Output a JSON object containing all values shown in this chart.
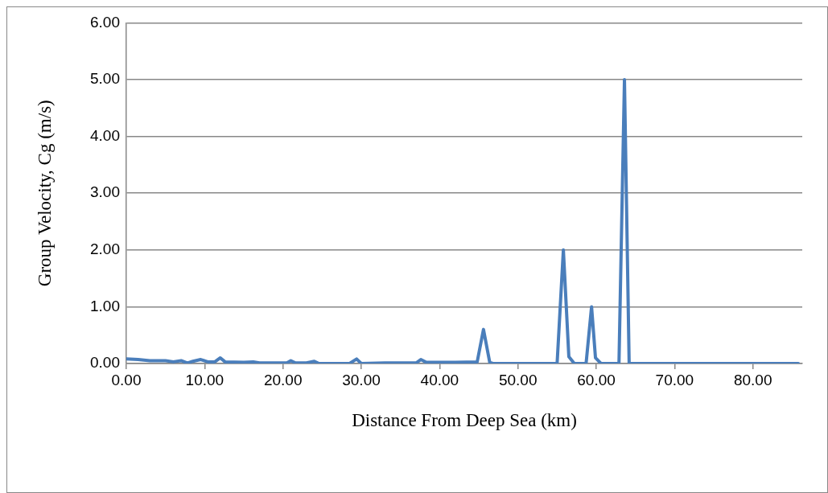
{
  "chart_data": {
    "type": "line",
    "xlabel": "Distance From Deep Sea (km)",
    "ylabel": "Group Velocity, Cg (m/s)",
    "xlim": [
      0,
      86.3
    ],
    "xticks": [
      {
        "value": 0,
        "label": "0.00"
      },
      {
        "value": 10,
        "label": "10.00"
      },
      {
        "value": 20,
        "label": "20.00"
      },
      {
        "value": 30,
        "label": "30.00"
      },
      {
        "value": 40,
        "label": "40.00"
      },
      {
        "value": 50,
        "label": "50.00"
      },
      {
        "value": 60,
        "label": "60.00"
      },
      {
        "value": 70,
        "label": "70.00"
      },
      {
        "value": 80,
        "label": "80.00"
      }
    ],
    "ylim": [
      0,
      6
    ],
    "yticks": [
      {
        "value": 0,
        "label": "0.00"
      },
      {
        "value": 1,
        "label": "1.00"
      },
      {
        "value": 2,
        "label": "2.00"
      },
      {
        "value": 3,
        "label": "3.00"
      },
      {
        "value": 4,
        "label": "4.00"
      },
      {
        "value": 5,
        "label": "5.00"
      },
      {
        "value": 6,
        "label": "6.00"
      }
    ],
    "grid": "y",
    "marker": "none",
    "line_style": "solid",
    "legend": false,
    "series": [
      {
        "color": "#4a7ebb",
        "x": [
          0,
          1.5,
          3,
          5,
          6,
          7,
          7.8,
          8.5,
          9.5,
          10.4,
          11.3,
          12,
          12.6,
          15,
          16.2,
          17,
          20.5,
          21,
          21.6,
          23,
          24,
          24.6,
          28.5,
          29.4,
          30,
          33,
          37,
          37.6,
          38.3,
          42,
          44.8,
          45.6,
          46.4,
          46.8,
          55,
          55.8,
          56.5,
          57.2,
          58.7,
          59.4,
          59.9,
          60.6,
          62.9,
          63.6,
          64.2,
          85.8
        ],
        "values": [
          0.08,
          0.07,
          0.05,
          0.05,
          0.03,
          0.05,
          0.01,
          0.04,
          0.07,
          0.03,
          0.03,
          0.1,
          0.03,
          0.02,
          0.03,
          0.01,
          0.01,
          0.05,
          0.01,
          0.01,
          0.04,
          0,
          0,
          0.08,
          0,
          0.01,
          0.01,
          0.07,
          0.02,
          0.02,
          0.03,
          0.6,
          0.02,
          0,
          0,
          2.0,
          0.12,
          0,
          0,
          1.0,
          0.1,
          0,
          0,
          5.0,
          0,
          0
        ]
      }
    ]
  }
}
